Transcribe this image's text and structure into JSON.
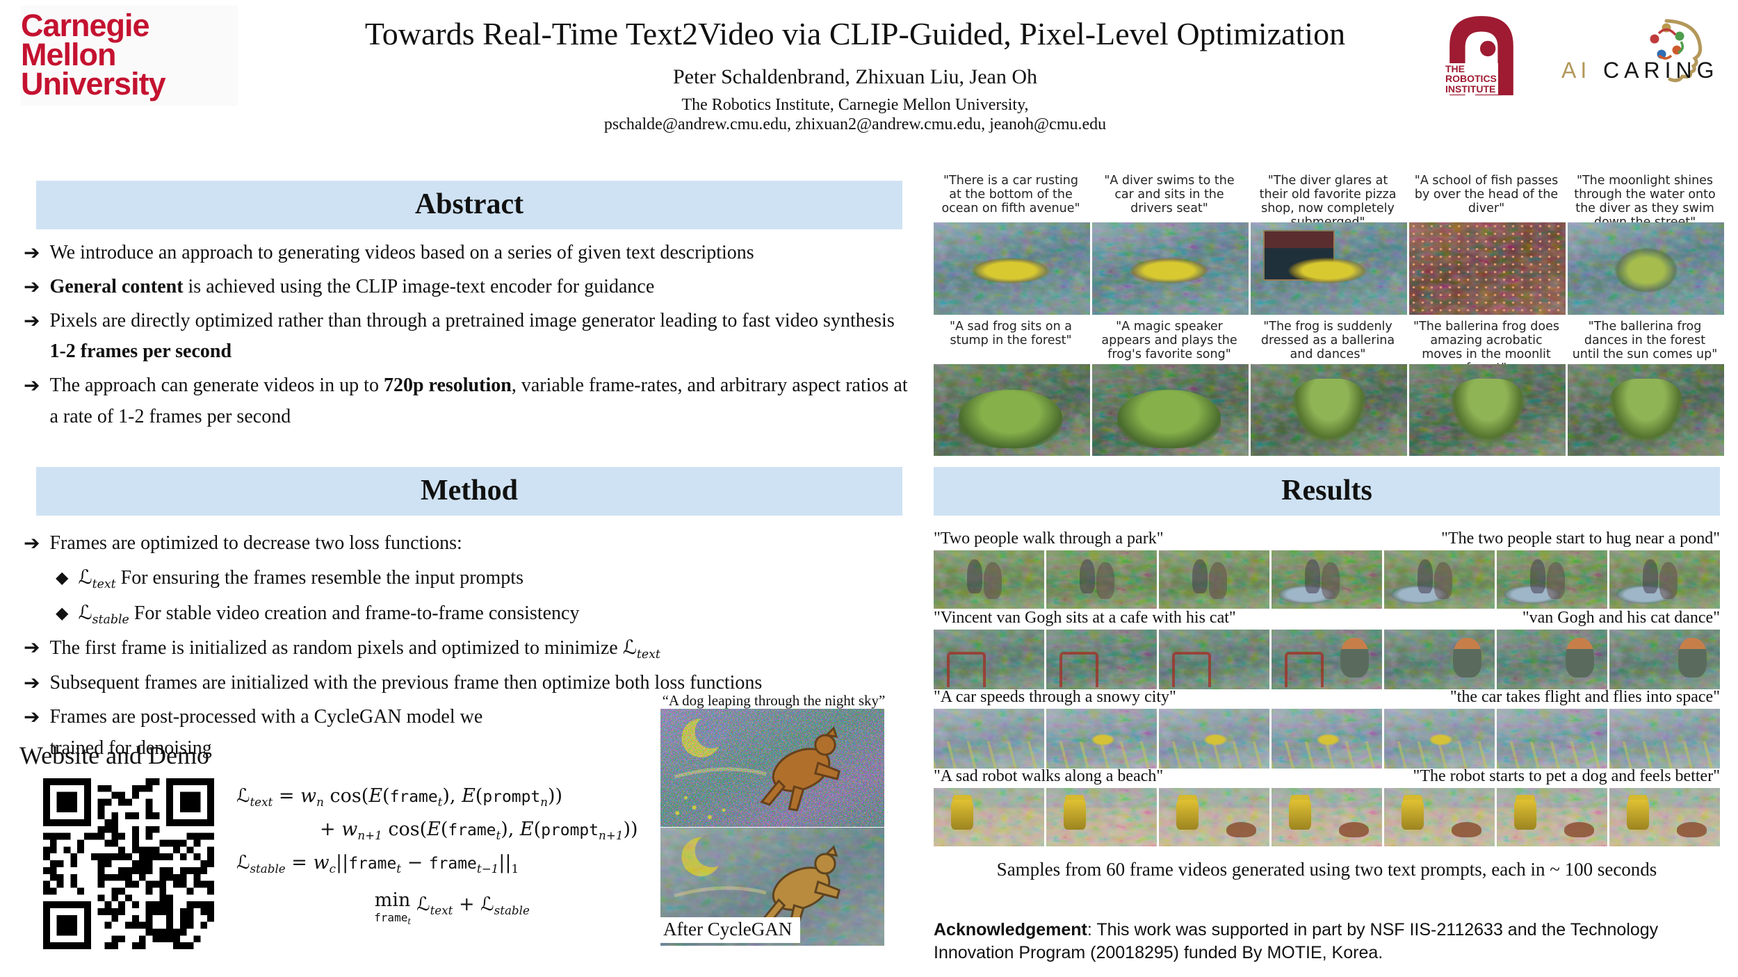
{
  "poster": {
    "cmu_wordmark": [
      "Carnegie",
      "Mellon",
      "University"
    ],
    "title": "Towards Real-Time Text2Video via CLIP-Guided, Pixel-Level Optimization",
    "authors": "Peter Schaldenbrand, Zhixuan Liu, Jean Oh",
    "affiliation": "The Robotics Institute, Carnegie Mellon University,",
    "emails": "pschalde@andrew.cmu.edu, zhixuan2@andrew.cmu.edu, jeanoh@cmu.edu"
  },
  "logos": {
    "robotics_institute": [
      "THE",
      "ROBOTICS",
      "INSTITUTE"
    ],
    "ai_caring_ai": "AI",
    "ai_caring_caring": "CARING"
  },
  "colors": {
    "cmu_red": "#C41230",
    "section_header_bg": "#CFE2F3",
    "robotics_red": "#9E1B32",
    "caring_gold": "#B3985A"
  },
  "abstract": {
    "heading": "Abstract",
    "bullets": [
      [
        {
          "t": "We introduce an approach to generating videos based on a series of given text descriptions"
        }
      ],
      [
        {
          "t": "General content",
          "c": "b"
        },
        {
          "t": " is achieved using the CLIP image-text encoder for guidance"
        }
      ],
      [
        {
          "t": "Pixels are directly optimized rather than through a pretrained image generator leading to fast video synthesis "
        },
        {
          "t": "1-2 frames per second",
          "c": "b"
        }
      ],
      [
        {
          "t": "The approach can generate videos in up to "
        },
        {
          "t": "720p resolution",
          "c": "b"
        },
        {
          "t": ", variable frame-rates, and arbitrary aspect ratios at a rate of 1-2 frames per second"
        }
      ]
    ]
  },
  "method": {
    "heading": "Method",
    "bullets": {
      "b1": [
        {
          "t": "Frames are optimized to decrease two loss functions:"
        }
      ],
      "s1": [
        {
          "t": "ℒ",
          "c": "v"
        },
        {
          "t": "text",
          "c": "v sub"
        },
        {
          "t": "  For ensuring the frames resemble the input prompts"
        }
      ],
      "s2": [
        {
          "t": "ℒ",
          "c": "v"
        },
        {
          "t": "stable",
          "c": "v sub"
        },
        {
          "t": " For stable video creation and frame-to-frame consistency"
        }
      ],
      "b2": [
        {
          "t": "The first frame is initialized as random pixels and optimized to minimize "
        },
        {
          "t": "ℒ",
          "c": "v"
        },
        {
          "t": "text",
          "c": "v sub"
        }
      ],
      "b3": [
        {
          "t": "Subsequent frames are initialized with the previous frame then optimize both loss functions"
        }
      ],
      "b4": [
        {
          "t": "Frames are post-processed with a CycleGAN model we\ntrained for denoising"
        }
      ]
    },
    "website_heading": "Website and Demo",
    "formulas": {
      "line1": [
        {
          "t": "ℒ",
          "c": "v"
        },
        {
          "t": "text",
          "c": "v sub"
        },
        {
          "t": " = "
        },
        {
          "t": "w",
          "c": "v"
        },
        {
          "t": "n",
          "c": "v sub"
        },
        {
          "t": " cos("
        },
        {
          "t": "E",
          "c": "v"
        },
        {
          "t": "("
        },
        {
          "t": "frame",
          "c": "m"
        },
        {
          "t": "t",
          "c": "v sub"
        },
        {
          "t": "), "
        },
        {
          "t": "E",
          "c": "v"
        },
        {
          "t": "("
        },
        {
          "t": "prompt",
          "c": "m"
        },
        {
          "t": "n",
          "c": "v sub"
        },
        {
          "t": "))"
        }
      ],
      "line2": [
        {
          "t": "+ "
        },
        {
          "t": "w",
          "c": "v"
        },
        {
          "t": "n+1",
          "c": "v sub"
        },
        {
          "t": " cos("
        },
        {
          "t": "E",
          "c": "v"
        },
        {
          "t": "("
        },
        {
          "t": "frame",
          "c": "m"
        },
        {
          "t": "t",
          "c": "v sub"
        },
        {
          "t": "), "
        },
        {
          "t": "E",
          "c": "v"
        },
        {
          "t": "("
        },
        {
          "t": "prompt",
          "c": "m"
        },
        {
          "t": "n+1",
          "c": "v sub"
        },
        {
          "t": "))"
        }
      ],
      "line3": [
        {
          "t": "ℒ",
          "c": "v"
        },
        {
          "t": "stable",
          "c": "v sub"
        },
        {
          "t": " = "
        },
        {
          "t": "w",
          "c": "v"
        },
        {
          "t": "c",
          "c": "v sub"
        },
        {
          "t": "||"
        },
        {
          "t": "frame",
          "c": "m"
        },
        {
          "t": "t",
          "c": "v sub"
        },
        {
          "t": " − "
        },
        {
          "t": "frame",
          "c": "m"
        },
        {
          "t": "t−1",
          "c": "v sub"
        },
        {
          "t": "||"
        },
        {
          "t": "1",
          "c": "sub"
        }
      ],
      "min_label": "min",
      "min_under": [
        {
          "t": "frame",
          "c": "m"
        },
        {
          "t": "t",
          "c": "v sub"
        }
      ],
      "min_rest": [
        {
          "t": " ℒ",
          "c": "v"
        },
        {
          "t": "text",
          "c": "v sub"
        },
        {
          "t": " + "
        },
        {
          "t": "ℒ",
          "c": "v"
        },
        {
          "t": "stable",
          "c": "v sub"
        }
      ]
    },
    "dog_caption": "“A dog leaping through the night sky”",
    "after_cyclegan_label": "After CycleGAN"
  },
  "story_grids": [
    {
      "captions": [
        "\"There is a car rusting at the bottom of the ocean on fifth avenue\"",
        "\"A diver swims to the car and sits in the drivers seat\"",
        "\"The diver glares at their old favorite pizza shop, now completely submerged\"",
        "\"A school of fish passes by over the head of the diver\"",
        "\"The moonlight shines through the water onto the diver as they swim down the street\""
      ]
    },
    {
      "captions": [
        "\"A sad frog sits on a stump in the forest\"",
        "\"A magic speaker appears and plays the frog's favorite song\"",
        "\"The frog is suddenly dressed as a ballerina and dances\"",
        "\"The ballerina frog does amazing acrobatic moves in the moonlit forest\"",
        "\"The ballerina frog dances in the forest until the sun comes up\""
      ]
    }
  ],
  "results": {
    "heading": "Results",
    "rows": [
      {
        "left": "\"Two people walk through a park\"",
        "right": "\"The two people start to hug near a pond\""
      },
      {
        "left": "\"Vincent van Gogh sits at a cafe with his cat\"",
        "right": "\"van Gogh and his cat dance\""
      },
      {
        "left": "\"A car speeds through a snowy city\"",
        "right": "\"the car takes flight and flies into space\""
      },
      {
        "left": "\"A sad robot walks along a beach\"",
        "right": "\"The robot starts to pet a dog and feels better\""
      }
    ],
    "samples_caption": "Samples from 60 frame videos generated using two text prompts, each in ~ 100 seconds",
    "acknowledgement_label": "Acknowledgement",
    "acknowledgement_text": ": This work was supported in part by NSF IIS-2112633 and the Technology Innovation Program (20018295) funded By MOTIE, Korea."
  }
}
